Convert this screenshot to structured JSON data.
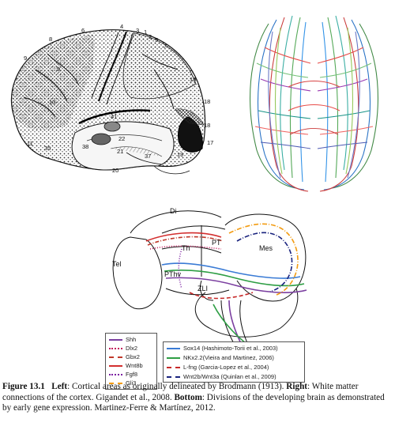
{
  "brodmann_figure": {
    "area_labels": [
      "4",
      "3",
      "1",
      "2",
      "5",
      "7",
      "6",
      "8",
      "9",
      "10",
      "11",
      "19",
      "18",
      "17",
      "18",
      "19",
      "37",
      "20",
      "35",
      "38",
      "22",
      "41",
      "42"
    ],
    "labels_top": [
      "4",
      "3",
      "1",
      "2",
      "5",
      "7",
      "6",
      "8",
      "9"
    ],
    "labels_right": [
      "19",
      "18",
      "18",
      "17",
      "19"
    ],
    "labels_bottom": [
      "11",
      "35",
      "20",
      "37"
    ],
    "labels_inner": [
      "10",
      "9",
      "41",
      "22",
      "21",
      "38"
    ]
  },
  "diagram": {
    "regions": {
      "di": "Di",
      "tel": "Tel",
      "th": "Th",
      "pt": "PT",
      "mes": "Mes",
      "pthv": "PThv",
      "zli": "ZLI"
    },
    "legend_left": [
      {
        "label": "Shh",
        "color": "#7b3fa0",
        "style": "solid"
      },
      {
        "label": "Dlx2",
        "color": "#c2185b",
        "style": "dotted"
      },
      {
        "label": "Gbx2",
        "color": "#c0392b",
        "style": "dashdot"
      },
      {
        "label": "Wnt8b",
        "color": "#d32f2f",
        "style": "solid"
      },
      {
        "label": "Fgf8",
        "color": "#7b1fa2",
        "style": "dotted"
      },
      {
        "label": "Gli3",
        "color": "#f39c12",
        "style": "dashdot"
      }
    ],
    "legend_right": [
      {
        "label": "Sox14 (Hashimoto-Torii et al., 2003)",
        "color": "#3a7bd5",
        "style": "solid"
      },
      {
        "label": "NKx2.2(Vieira and Martinez, 2006)",
        "color": "#2e9e44",
        "style": "solid"
      },
      {
        "label": "L-fng (Garcia-Lopez et al., 2004)",
        "color": "#c62828",
        "style": "dashed"
      },
      {
        "label": "Wnt2b/Wnt3a (Quinlan et al., 2009)",
        "color": "#1a237e",
        "style": "dashdot"
      }
    ]
  },
  "caption": {
    "figure_label": "Figure 13.1",
    "left_label": "Left",
    "left_text": ": Cortical areas as originally delineated by Brodmann (1913). ",
    "right_label": "Right",
    "right_text": ": White matter connections of the cortex. Gigandet et al., 2008. ",
    "bottom_label": "Bottom",
    "bottom_text": ": Divisions of the developing brain as demonstrated by early gene expression. Martinez-Ferre & Martínez, 2012."
  }
}
